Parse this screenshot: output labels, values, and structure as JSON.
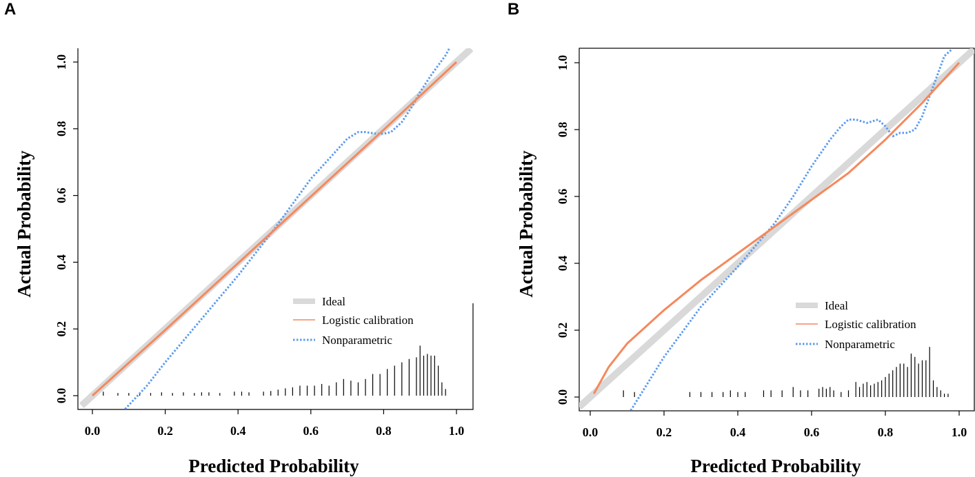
{
  "chart_data": [
    {
      "panel": "A",
      "type": "line",
      "xlabel": "Predicted Probability",
      "ylabel": "Actual Probability",
      "xlim": [
        -0.03,
        1.05
      ],
      "ylim": [
        -0.04,
        1.04
      ],
      "xticks": [
        "0.0",
        "0.2",
        "0.4",
        "0.6",
        "0.8",
        "1.0"
      ],
      "yticks": [
        "0.0",
        "0.2",
        "0.4",
        "0.6",
        "0.8",
        "1.0"
      ],
      "legend": [
        "Ideal",
        "Logistic calibration",
        "Nonparametric"
      ],
      "colors": {
        "ideal": "#d9d9d9",
        "logistic": "#f4895c",
        "nonparametric": "#5b9bef"
      },
      "series": [
        {
          "name": "Ideal",
          "x": [
            -0.03,
            1.04
          ],
          "y": [
            -0.03,
            1.04
          ]
        },
        {
          "name": "Logistic calibration",
          "x": [
            0.0,
            0.2,
            0.4,
            0.6,
            0.8,
            1.0
          ],
          "y": [
            0.0,
            0.197,
            0.397,
            0.597,
            0.797,
            1.0
          ]
        },
        {
          "name": "Nonparametric",
          "x": [
            0.09,
            0.15,
            0.2,
            0.3,
            0.4,
            0.5,
            0.6,
            0.65,
            0.7,
            0.73,
            0.75,
            0.78,
            0.8,
            0.82,
            0.85,
            0.88,
            0.9,
            0.93,
            0.95,
            0.97,
            0.98
          ],
          "y": [
            -0.04,
            0.03,
            0.1,
            0.23,
            0.36,
            0.5,
            0.65,
            0.71,
            0.77,
            0.79,
            0.79,
            0.785,
            0.785,
            0.79,
            0.82,
            0.87,
            0.91,
            0.96,
            0.99,
            1.02,
            1.04
          ]
        }
      ],
      "rug": {
        "x": [
          0.03,
          0.07,
          0.1,
          0.13,
          0.16,
          0.19,
          0.22,
          0.25,
          0.28,
          0.3,
          0.32,
          0.35,
          0.39,
          0.41,
          0.43,
          0.47,
          0.49,
          0.51,
          0.53,
          0.55,
          0.57,
          0.59,
          0.61,
          0.63,
          0.65,
          0.67,
          0.69,
          0.71,
          0.73,
          0.75,
          0.77,
          0.79,
          0.81,
          0.83,
          0.85,
          0.87,
          0.89,
          0.9,
          0.91,
          0.92,
          0.93,
          0.94,
          0.95,
          0.96,
          0.97
        ],
        "h": [
          0.012,
          0.008,
          0.008,
          0.008,
          0.008,
          0.01,
          0.008,
          0.01,
          0.008,
          0.01,
          0.01,
          0.008,
          0.012,
          0.012,
          0.01,
          0.012,
          0.014,
          0.018,
          0.022,
          0.025,
          0.03,
          0.03,
          0.03,
          0.035,
          0.03,
          0.04,
          0.05,
          0.045,
          0.04,
          0.05,
          0.065,
          0.065,
          0.08,
          0.09,
          0.1,
          0.11,
          0.115,
          0.15,
          0.12,
          0.125,
          0.12,
          0.12,
          0.09,
          0.04,
          0.02
        ]
      }
    },
    {
      "panel": "B",
      "type": "line",
      "xlabel": "Predicted Probability",
      "ylabel": "Actual Probability",
      "xlim": [
        -0.03,
        1.05
      ],
      "ylim": [
        -0.04,
        1.04
      ],
      "xticks": [
        "0.0",
        "0.2",
        "0.4",
        "0.6",
        "0.8",
        "1.0"
      ],
      "yticks": [
        "0.0",
        "0.2",
        "0.4",
        "0.6",
        "0.8",
        "1.0"
      ],
      "legend": [
        "Ideal",
        "Logistic calibration",
        "Nonparametric"
      ],
      "colors": {
        "ideal": "#d9d9d9",
        "logistic": "#f4895c",
        "nonparametric": "#5b9bef"
      },
      "series": [
        {
          "name": "Ideal",
          "x": [
            -0.03,
            1.04
          ],
          "y": [
            -0.03,
            1.04
          ]
        },
        {
          "name": "Logistic calibration",
          "x": [
            0.01,
            0.05,
            0.1,
            0.15,
            0.2,
            0.3,
            0.4,
            0.5,
            0.6,
            0.7,
            0.8,
            0.9,
            0.95,
            1.0
          ],
          "y": [
            0.01,
            0.09,
            0.16,
            0.21,
            0.26,
            0.35,
            0.43,
            0.51,
            0.59,
            0.67,
            0.77,
            0.88,
            0.94,
            1.0
          ]
        },
        {
          "name": "Nonparametric",
          "x": [
            0.11,
            0.2,
            0.3,
            0.4,
            0.5,
            0.55,
            0.6,
            0.65,
            0.68,
            0.7,
            0.72,
            0.75,
            0.78,
            0.8,
            0.82,
            0.84,
            0.86,
            0.88,
            0.9,
            0.92,
            0.94,
            0.96,
            0.98
          ],
          "y": [
            -0.04,
            0.12,
            0.27,
            0.39,
            0.52,
            0.6,
            0.69,
            0.77,
            0.81,
            0.83,
            0.83,
            0.82,
            0.83,
            0.81,
            0.78,
            0.79,
            0.79,
            0.8,
            0.84,
            0.9,
            0.96,
            1.02,
            1.04
          ]
        }
      ],
      "rug": {
        "x": [
          0.09,
          0.12,
          0.27,
          0.3,
          0.33,
          0.36,
          0.38,
          0.4,
          0.42,
          0.47,
          0.49,
          0.52,
          0.55,
          0.57,
          0.59,
          0.62,
          0.63,
          0.64,
          0.65,
          0.66,
          0.68,
          0.7,
          0.72,
          0.73,
          0.74,
          0.75,
          0.76,
          0.77,
          0.78,
          0.79,
          0.8,
          0.81,
          0.82,
          0.83,
          0.84,
          0.85,
          0.86,
          0.87,
          0.88,
          0.89,
          0.9,
          0.91,
          0.92,
          0.93,
          0.94,
          0.95,
          0.96,
          0.97
        ],
        "h": [
          0.02,
          0.015,
          0.015,
          0.015,
          0.015,
          0.015,
          0.02,
          0.015,
          0.015,
          0.02,
          0.02,
          0.02,
          0.03,
          0.02,
          0.02,
          0.025,
          0.03,
          0.025,
          0.03,
          0.02,
          0.015,
          0.02,
          0.045,
          0.03,
          0.04,
          0.045,
          0.035,
          0.04,
          0.045,
          0.05,
          0.06,
          0.07,
          0.08,
          0.09,
          0.1,
          0.1,
          0.09,
          0.13,
          0.12,
          0.1,
          0.11,
          0.11,
          0.15,
          0.05,
          0.03,
          0.02,
          0.01,
          0.01
        ]
      }
    }
  ]
}
